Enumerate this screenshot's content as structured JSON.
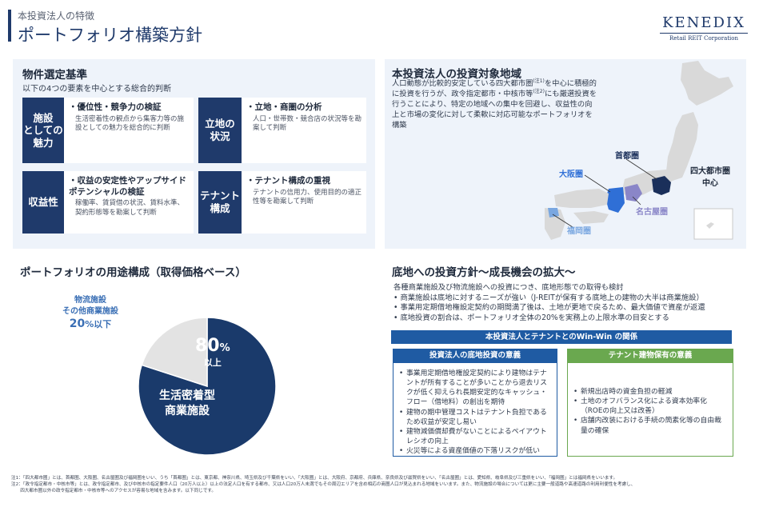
{
  "header": {
    "subtitle": "本投資法人の特徴",
    "title": "ポートフォリオ構築方針",
    "logo_word": "KENEDIX",
    "logo_sub": "Retail REIT Corporation"
  },
  "criteria": {
    "title": "物件選定基準",
    "subtitle": "以下の4つの要素を中心とする総合的判断",
    "items": [
      {
        "label_lines": [
          "施設",
          "としての",
          "魅力"
        ],
        "head": "・優位性・競争力の検証",
        "desc": "生活密着性の観点から集客力等の施設としての魅力を総合的に判断"
      },
      {
        "label_lines": [
          "立地の",
          "状況"
        ],
        "head": "・立地・商圏の分析",
        "desc": "人口・世帯数・競合店の状況等を勘案して判断"
      },
      {
        "label_lines": [
          "収益性"
        ],
        "head": "・収益の安定性やアップサイドポテンシャルの検証",
        "desc": "稼働率、賃貸借の状況、賃料水準、契約形態等を勘案して判断"
      },
      {
        "label_lines": [
          "テナント",
          "構成"
        ],
        "head": "・テナント構成の重視",
        "desc": "テナントの信用力、使用目的の適正性等を勘案して判断"
      }
    ]
  },
  "region": {
    "title": "本投資法人の投資対象地域",
    "text_parts": [
      "人口動態が比較的安定している四大都市圏",
      "(注1)",
      "を中心に積極的に投資を行うが、政令指定都市・中核市等",
      "(注2)",
      "にも厳選投資を行うことにより、特定の地域への集中を回避し、収益性の向上と市場の変化に対して柔軟に対応可能なポートフォリオを構築"
    ],
    "labels": {
      "shuto": "首都圏",
      "osaka": "大阪圏",
      "fukuoka": "福岡圏",
      "nagoya": "名古屋圏",
      "center_l1": "四大都市圏",
      "center_l2": "中心"
    },
    "colors": {
      "shuto": "#1a2f5a",
      "osaka": "#2f6fd6",
      "fukuoka": "#7aa7e0",
      "nagoya": "#8a86c8",
      "land": "#d9d9d9"
    }
  },
  "usage": {
    "title": "ポートフォリオの用途構成（取得価格ベース）",
    "minor_l1": "物流施設",
    "minor_l2": "その他商業施設",
    "minor_pct_num": "20",
    "minor_pct_suffix": "%以下",
    "major_pct_num": "80",
    "major_pct_suffix": "%",
    "major_sub": "以上",
    "major_l1": "生活密着型",
    "major_l2": "商業施設"
  },
  "chart_data": {
    "type": "pie",
    "categories": [
      "生活密着型商業施設",
      "物流施設・その他商業施設"
    ],
    "values": [
      80,
      20
    ],
    "colors": [
      "#1a3a6b",
      "#e3e3e3"
    ]
  },
  "land": {
    "title": "底地への投資方針〜成長機会の拡大〜",
    "lines": [
      "各種商業施設及び物流施設への投資につき、底地形態での取得も検討",
      "• 商業施設は底地に対するニーズが強い（J-REITが保有する底地上の建物の大半は商業施設）",
      "• 事業用定期借地権設定契約の期間満了後は、土地が更地で戻るため、最大価値で資産が返還",
      "• 底地投資の割合は、ポートフォリオ全体の20%を実務上の上限水準の目安とする"
    ],
    "winwin": "本投資法人とテナントとのWin-Win の関係",
    "left_head": "投資法人の底地投資の意義",
    "left_items": [
      "事業用定期借地権設定契約により建物はテナントが所有することが多いことから退去リスクが低く抑えられ長期安定的なキャッシュ・フロー（借地料）の創出を期待",
      "建物の期中管理コストはテナント負担であるため収益が安定し易い",
      "建物減価償却費がないことによるペイアウトレシオの向上",
      "火災等による資産価値の下落リスクが低い"
    ],
    "right_head": "テナント建物保有の意義",
    "right_items": [
      "新規出店時の資金負担の軽減",
      "土地のオフバランス化による資本効率化（ROEの向上又は改善）",
      "店舗内改装における手続の簡素化等の自由裁量の確保"
    ],
    "colors": {
      "left": "#1f5ba3",
      "right": "#6aa84f"
    }
  },
  "notes": [
    "注1：「四大都市圏」とは、首都圏、大阪圏、名古屋圏及び福岡圏をいい、うち「首都圏」とは、東京都、神奈川県、埼玉県及び千葉県をいい、「大阪圏」とは、大阪府、京都府、兵庫県、奈良県及び滋賀県をいい、「名古屋圏」とは、愛知県、岐阜県及び三重県をいい、「福岡圏」とは福岡県をいいます。",
    "注2：「政令指定都市・中核市等」とは、政令指定都市、及び中核市の指定要件人口（20万人以上）以上の法定人口を有する都市、又は人口20万人未満でもその周辺エリアを含め相応の商圏人口が見込まれる地域をいいます。また、物流施設の場合については更に主要一般道路や高速道路の利用利便性を考慮し、",
    "　　四大都市圏以外の政令指定都市・中核市等へのアクセスが容易な地域を含みます。以下同じです。"
  ]
}
